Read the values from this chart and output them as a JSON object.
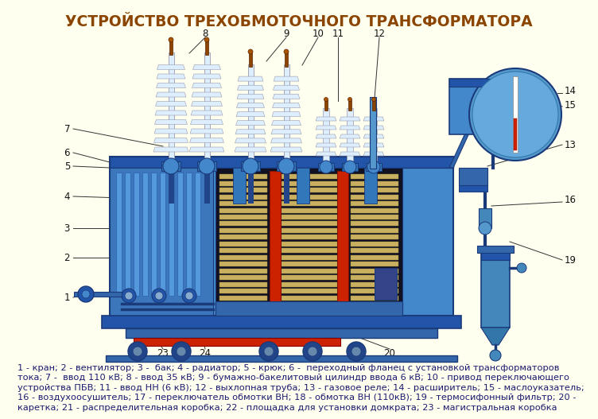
{
  "title": "УСТРОЙСТВО ТРЕХОБМОТОЧНОГО ТРАНСФОРМАТОРА",
  "title_color": "#8B4500",
  "bg_color": "#FFFFF0",
  "caption_lines": [
    "1 - кран; 2 - вентилятор; 3 -  бак; 4 - радиатор; 5 - крюк; 6 -  переходный фланец с установкой трансформаторов",
    "тока; 7 -  ввод 110 кВ; 8 - ввод 35 кВ; 9 - бумажно-бакелитовый цилиндр ввода 6 кВ; 10 - привод переключающего",
    "устройства ПБВ; 11 - ввод НН (6 кВ); 12 - выхлопная труба; 13 - газовое реле; 14 - расширитель; 15 - маслоуказатель;",
    "16 - воздухоосушитель; 17 - переключатель обмотки ВН; 18 - обмотка ВН (110кВ); 19 - термосифонный фильтр; 20 -",
    "каретка; 21 - распределительная коробка; 22 - площадка для установки домкрата; 23 - магистральная коробка"
  ],
  "caption_color": "#1a1a6e",
  "caption_fontsize": 8.2,
  "label_color": "#111111",
  "label_fontsize": 8.5,
  "tank_blue": "#4488CC",
  "tank_dark": "#1a3a7a",
  "tank_mid": "#3366AA"
}
